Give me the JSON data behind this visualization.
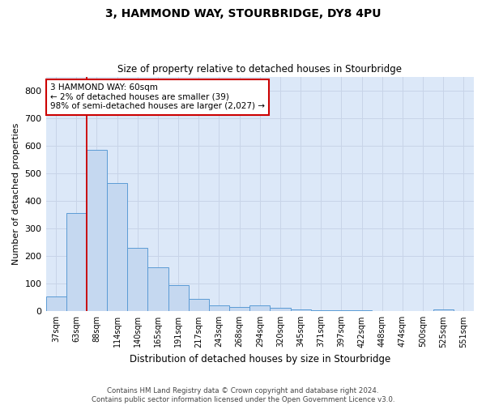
{
  "title": "3, HAMMOND WAY, STOURBRIDGE, DY8 4PU",
  "subtitle": "Size of property relative to detached houses in Stourbridge",
  "xlabel": "Distribution of detached houses by size in Stourbridge",
  "ylabel": "Number of detached properties",
  "categories": [
    "37sqm",
    "63sqm",
    "88sqm",
    "114sqm",
    "140sqm",
    "165sqm",
    "191sqm",
    "217sqm",
    "243sqm",
    "268sqm",
    "294sqm",
    "320sqm",
    "345sqm",
    "371sqm",
    "397sqm",
    "422sqm",
    "448sqm",
    "474sqm",
    "500sqm",
    "525sqm",
    "551sqm"
  ],
  "values": [
    55,
    355,
    585,
    465,
    230,
    160,
    95,
    45,
    20,
    17,
    20,
    12,
    7,
    5,
    4,
    3,
    2,
    1,
    1,
    8,
    1
  ],
  "bar_color": "#c5d8f0",
  "bar_edge_color": "#5b9bd5",
  "annotation_text_line1": "3 HAMMOND WAY: 60sqm",
  "annotation_text_line2": "← 2% of detached houses are smaller (39)",
  "annotation_text_line3": "98% of semi-detached houses are larger (2,027) →",
  "annotation_box_color": "#ffffff",
  "annotation_box_edge": "#cc0000",
  "vline_color": "#cc0000",
  "vline_x": 1.5,
  "ylim": [
    0,
    850
  ],
  "yticks": [
    0,
    100,
    200,
    300,
    400,
    500,
    600,
    700,
    800
  ],
  "grid_color": "#c8d4e8",
  "bg_color": "#dce8f8",
  "fig_color": "#ffffff",
  "footer_line1": "Contains HM Land Registry data © Crown copyright and database right 2024.",
  "footer_line2": "Contains public sector information licensed under the Open Government Licence v3.0."
}
